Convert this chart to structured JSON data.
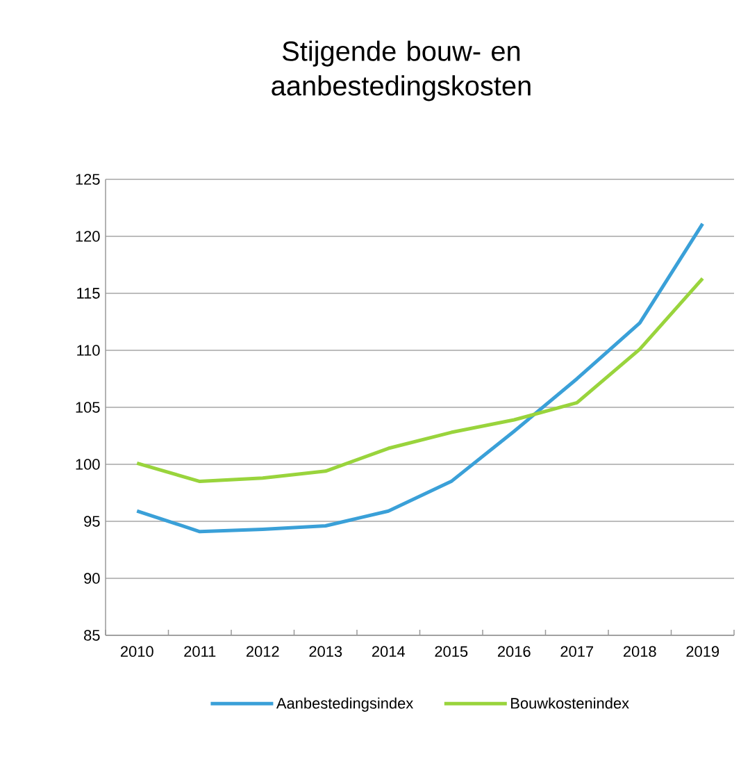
{
  "chart_data": {
    "type": "line",
    "title": "Stijgende bouw- en aanbestedingskosten",
    "categories": [
      "2010",
      "2011",
      "2012",
      "2013",
      "2014",
      "2015",
      "2016",
      "2017",
      "2018",
      "2019"
    ],
    "series": [
      {
        "name": "Aanbestedingsindex",
        "color": "#3aa0d8",
        "values": [
          95.9,
          94.1,
          94.3,
          94.6,
          95.9,
          98.5,
          102.9,
          107.5,
          112.4,
          121.1
        ]
      },
      {
        "name": "Bouwkostenindex",
        "color": "#99d43c",
        "values": [
          100.1,
          98.5,
          98.8,
          99.4,
          101.4,
          102.8,
          103.9,
          105.4,
          110.1,
          116.3
        ]
      }
    ],
    "ylim": [
      85,
      125
    ],
    "yticks": [
      85,
      90,
      95,
      100,
      105,
      110,
      115,
      120,
      125
    ],
    "grid": "y",
    "legend": "bottom",
    "marker": "none",
    "line_style": "solid"
  }
}
